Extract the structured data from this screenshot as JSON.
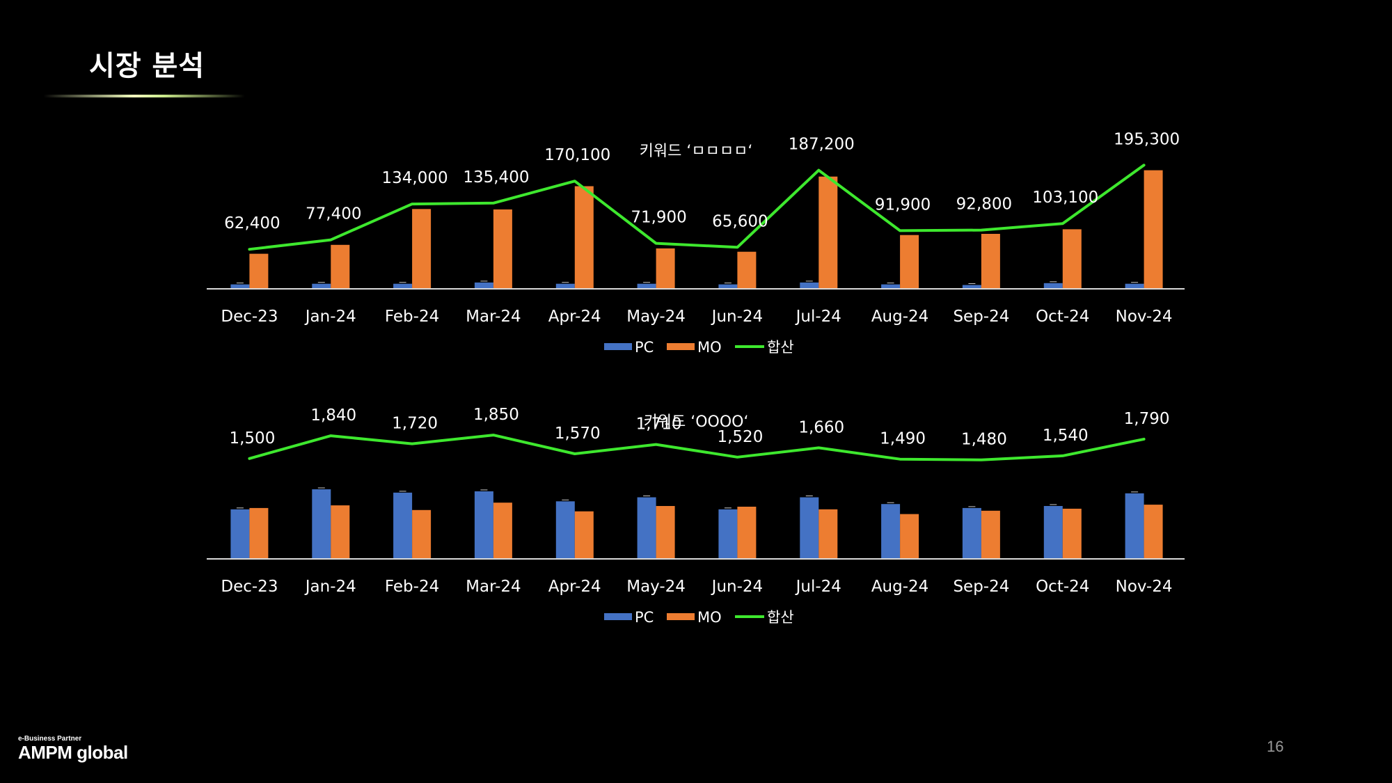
{
  "page": {
    "title": "시장 분석",
    "page_number": "16",
    "logo_tagline": "e-Business Partner",
    "logo_name": "AMPM global"
  },
  "colors": {
    "pc": "#4472C4",
    "mo": "#ED7D31",
    "total": "#3EE82E",
    "axis": "#D9D9D9"
  },
  "chart_data": [
    {
      "type": "bar",
      "title": "키워드 ‘ㅁㅁㅁㅁ‘",
      "categories": [
        "Dec-23",
        "Jan-24",
        "Feb-24",
        "Mar-24",
        "Apr-24",
        "May-24",
        "Jun-24",
        "Jul-24",
        "Aug-24",
        "Sep-24",
        "Oct-24",
        "Nov-24"
      ],
      "series": [
        {
          "name": "PC",
          "type": "bar",
          "values": [
            7000,
            8000,
            8000,
            10000,
            8000,
            8000,
            7000,
            10000,
            7000,
            6000,
            9000,
            8000
          ]
        },
        {
          "name": "MO",
          "type": "bar",
          "values": [
            55400,
            69400,
            126000,
            125400,
            162100,
            63900,
            58600,
            177200,
            84900,
            86800,
            94100,
            187300
          ]
        },
        {
          "name": "합산",
          "type": "line",
          "values": [
            62400,
            77400,
            134000,
            135400,
            170100,
            71900,
            65600,
            187200,
            91900,
            92800,
            103100,
            195300
          ]
        }
      ],
      "data_labels": [
        "62,400",
        "77,400",
        "134,000",
        "135,400",
        "170,100",
        "71,900",
        "65,600",
        "187,200",
        "91,900",
        "92,800",
        "103,100",
        "195,300"
      ],
      "legend": [
        "PC",
        "MO",
        "합산"
      ],
      "legend_position": "bottom",
      "ylim": [
        0,
        200000
      ],
      "grid": false
    },
    {
      "type": "bar",
      "title": "키워드 ‘OOOO‘",
      "categories": [
        "Dec-23",
        "Jan-24",
        "Feb-24",
        "Mar-24",
        "Apr-24",
        "May-24",
        "Jun-24",
        "Jul-24",
        "Aug-24",
        "Sep-24",
        "Oct-24",
        "Nov-24"
      ],
      "series": [
        {
          "name": "PC",
          "type": "bar",
          "values": [
            740,
            1040,
            990,
            1010,
            860,
            920,
            740,
            920,
            820,
            760,
            790,
            980
          ]
        },
        {
          "name": "MO",
          "type": "bar",
          "values": [
            760,
            800,
            730,
            840,
            710,
            790,
            780,
            740,
            670,
            720,
            750,
            810
          ]
        },
        {
          "name": "합산",
          "type": "line",
          "values": [
            1500,
            1840,
            1720,
            1850,
            1570,
            1710,
            1520,
            1660,
            1490,
            1480,
            1540,
            1790
          ]
        }
      ],
      "data_labels": [
        "1,500",
        "1,840",
        "1,720",
        "1,850",
        "1,570",
        "1,710",
        "1,520",
        "1,660",
        "1,490",
        "1,480",
        "1,540",
        "1,790"
      ],
      "legend": [
        "PC",
        "MO",
        "합산"
      ],
      "legend_position": "bottom",
      "ylim": [
        0,
        2600
      ],
      "grid": false
    }
  ]
}
